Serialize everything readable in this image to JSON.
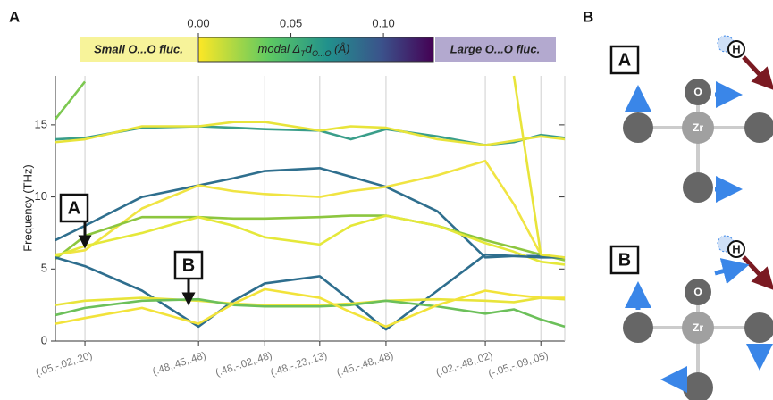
{
  "chart_data": {
    "type": "line",
    "panel_labels": [
      "A",
      "B"
    ],
    "ylabel": "Frequency (THz)",
    "x": [
      0,
      0.058,
      0.17,
      0.281,
      0.35,
      0.411,
      0.519,
      0.58,
      0.649,
      0.75,
      0.844,
      0.9,
      0.953,
      1
    ],
    "xlim": [
      0,
      1
    ],
    "xticks": [
      {
        "value": 0.058,
        "label": "(.05,-.02,.20)"
      },
      {
        "value": 0.281,
        "label": "(.48,.45,.48)"
      },
      {
        "value": 0.411,
        "label": "(.48,-.02,.48)"
      },
      {
        "value": 0.519,
        "label": "(.48,-.23,.13)"
      },
      {
        "value": 0.649,
        "label": "(.45,-.48,.48)"
      },
      {
        "value": 0.844,
        "label": "(.02,-.48,.02)"
      },
      {
        "value": 0.953,
        "label": "(-.05,-.09,.05)"
      }
    ],
    "ylim": [
      0,
      18.4
    ],
    "yticks": [
      0,
      5,
      10,
      15
    ],
    "grid": true,
    "series": [
      {
        "color": "#3a9e8a",
        "values": [
          14,
          14.1,
          14.8,
          14.9,
          14.8,
          14.7,
          14.6,
          14.0,
          14.7,
          14.2,
          13.6,
          13.8,
          14.3,
          14.1
        ]
      },
      {
        "color": "#e8e43a",
        "values": [
          13.8,
          14.0,
          14.9,
          14.9,
          15.2,
          15.2,
          14.6,
          14.9,
          14.8,
          14.0,
          13.6,
          13.9,
          14.2,
          14.0
        ]
      },
      {
        "color": "#2f6f8e",
        "values": [
          7.0,
          8.0,
          10.0,
          10.8,
          11.3,
          11.8,
          12.0,
          11.4,
          10.7,
          9.0,
          5.8,
          5.9,
          5.9,
          5.8
        ]
      },
      {
        "color": "#f0e442",
        "values": [
          6.0,
          6.3,
          9.2,
          10.8,
          10.4,
          10.2,
          10.0,
          10.4,
          10.7,
          11.5,
          12.5,
          9.5,
          6.0,
          5.7
        ]
      },
      {
        "color": "#8cc63f",
        "values": [
          5.7,
          7.3,
          8.6,
          8.6,
          8.5,
          8.5,
          8.6,
          8.7,
          8.7,
          8.0,
          7.0,
          6.5,
          6.0,
          5.6
        ]
      },
      {
        "color": "#e5e83a",
        "values": [
          5.9,
          6.6,
          7.5,
          8.6,
          8.0,
          7.2,
          6.7,
          8.0,
          8.7,
          8.0,
          6.8,
          6.2,
          5.5,
          5.3
        ]
      },
      {
        "color": "#2e6e8e",
        "values": [
          5.8,
          5.2,
          3.5,
          1.0,
          2.8,
          4.0,
          4.5,
          2.8,
          0.8,
          3.5,
          6.0,
          5.9,
          5.8,
          5.8
        ]
      },
      {
        "color": "#e8e43a",
        "values": [
          2.5,
          2.8,
          3.0,
          2.8,
          2.6,
          2.5,
          2.5,
          2.6,
          2.8,
          2.9,
          2.8,
          2.7,
          3.0,
          2.9
        ]
      },
      {
        "color": "#6cc05a",
        "values": [
          1.8,
          2.3,
          2.8,
          2.9,
          2.5,
          2.4,
          2.4,
          2.5,
          2.8,
          2.4,
          1.9,
          2.2,
          1.5,
          1.0
        ]
      },
      {
        "color": "#f2e33a",
        "values": [
          1.2,
          1.6,
          2.3,
          1.2,
          2.6,
          3.6,
          3.0,
          2.0,
          1.0,
          2.5,
          3.5,
          3.2,
          3.0,
          3.0
        ]
      },
      {
        "color": "#7cc850",
        "values": [
          15.4,
          18.0,
          null,
          null,
          null,
          null,
          null,
          null,
          null,
          null,
          null,
          null,
          null,
          null
        ]
      },
      {
        "color": "#e8e43a",
        "values": [
          null,
          null,
          null,
          null,
          null,
          null,
          null,
          null,
          null,
          null,
          null,
          18.4,
          6.0,
          5.8
        ]
      }
    ],
    "colorbar": {
      "lim": [
        0,
        0.127
      ],
      "ticks": [
        {
          "value": 0,
          "label": "0.00"
        },
        {
          "value": 0.05,
          "label": "0.05"
        },
        {
          "value": 0.1,
          "label": "0.10"
        }
      ],
      "label": [
        "modal Δ",
        "T",
        "d",
        "O...O",
        " (Å)"
      ],
      "low_note": "Small O...O fluc.",
      "high_note": "Large  O...O fluc."
    },
    "annotations": [
      "A",
      "B"
    ]
  },
  "diagram": {
    "panels": [
      {
        "label": "A",
        "atoms": [
          "O",
          "Zr",
          "H"
        ]
      },
      {
        "label": "B",
        "atoms": [
          "O",
          "Zr",
          "H"
        ]
      }
    ]
  }
}
